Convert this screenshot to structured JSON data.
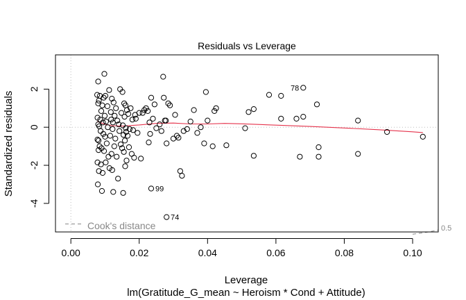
{
  "chart_data": {
    "type": "scatter",
    "title": "Residuals vs Leverage",
    "xlabel": "Leverage",
    "ylabel": "Standardized residuals",
    "subtitle": "lm(Gratitude_G_mean ~ Heroism * Cond + Attitude)",
    "xlim": [
      -0.0045,
      0.1075
    ],
    "ylim": [
      -5.5,
      3.8
    ],
    "x_ticks": [
      0.0,
      0.02,
      0.04,
      0.06,
      0.08,
      0.1
    ],
    "x_tick_labels": [
      "0.00",
      "0.02",
      "0.04",
      "0.06",
      "0.08",
      "0.10"
    ],
    "y_ticks": [
      -4,
      -2,
      0,
      2
    ],
    "y_tick_labels": [
      "-4",
      "-2",
      "0",
      "2"
    ],
    "legend": {
      "label": "Cook's distance",
      "position": "bottom-left"
    },
    "cooks_contour_label": "0.5",
    "cooks_contour": [
      [
        0.1,
        -5.62
      ],
      [
        0.104,
        -5.52
      ],
      [
        0.1075,
        -5.4
      ]
    ],
    "annotations": [
      {
        "label": "78",
        "x": 0.068,
        "y": 2.07
      },
      {
        "label": "99",
        "x": 0.0235,
        "y": -3.22
      },
      {
        "label": "74",
        "x": 0.028,
        "y": -4.72
      }
    ],
    "smooth_line": {
      "color": "#e5324b",
      "x": [
        0.0077,
        0.01,
        0.012,
        0.015,
        0.02,
        0.025,
        0.03,
        0.035,
        0.04,
        0.045,
        0.05,
        0.06,
        0.07,
        0.08,
        0.09,
        0.1,
        0.103
      ],
      "y": [
        0.3,
        0.16,
        0.08,
        0.06,
        0.12,
        0.2,
        0.22,
        0.17,
        0.17,
        0.2,
        0.18,
        0.11,
        0.04,
        -0.04,
        -0.13,
        -0.24,
        -0.28
      ]
    },
    "points": [
      [
        0.0077,
        1.7
      ],
      [
        0.0078,
        0.5
      ],
      [
        0.0078,
        -0.65
      ],
      [
        0.0078,
        -1.85
      ],
      [
        0.0079,
        -3.0
      ],
      [
        0.008,
        2.4
      ],
      [
        0.008,
        1.25
      ],
      [
        0.008,
        0.15
      ],
      [
        0.0081,
        -0.7
      ],
      [
        0.0081,
        -1.2
      ],
      [
        0.0082,
        -2.3
      ],
      [
        0.0082,
        1.4
      ],
      [
        0.0083,
        0.05
      ],
      [
        0.0084,
        -1.0
      ],
      [
        0.0085,
        1.65
      ],
      [
        0.0086,
        0.4
      ],
      [
        0.0087,
        -0.2
      ],
      [
        0.0088,
        -1.95
      ],
      [
        0.0089,
        0.85
      ],
      [
        0.009,
        -1.1
      ],
      [
        0.0091,
        -3.35
      ],
      [
        0.0092,
        1.15
      ],
      [
        0.0093,
        -2.4
      ],
      [
        0.0094,
        0.25
      ],
      [
        0.0095,
        -0.35
      ],
      [
        0.0096,
        1.55
      ],
      [
        0.0097,
        -1.25
      ],
      [
        0.0098,
        2.8
      ],
      [
        0.0099,
        0.6
      ],
      [
        0.01,
        -0.5
      ],
      [
        0.0101,
        1.65
      ],
      [
        0.0102,
        -1.85
      ],
      [
        0.0103,
        0.3
      ],
      [
        0.0105,
        -0.85
      ],
      [
        0.0107,
        1.1
      ],
      [
        0.0108,
        0.0
      ],
      [
        0.011,
        -1.55
      ],
      [
        0.0112,
        1.95
      ],
      [
        0.0113,
        -2.15
      ],
      [
        0.0115,
        -0.45
      ],
      [
        0.0117,
        0.8
      ],
      [
        0.0118,
        0.4
      ],
      [
        0.0119,
        -1.4
      ],
      [
        0.012,
        1.5
      ],
      [
        0.0121,
        -2.25
      ],
      [
        0.0122,
        -0.1
      ],
      [
        0.0123,
        0.25
      ],
      [
        0.0124,
        -3.4
      ],
      [
        0.0125,
        1.3
      ],
      [
        0.0127,
        -1.0
      ],
      [
        0.0128,
        0.6
      ],
      [
        0.013,
        -0.6
      ],
      [
        0.0132,
        1.0
      ],
      [
        0.0134,
        -1.55
      ],
      [
        0.0136,
        0.35
      ],
      [
        0.0138,
        -2.7
      ],
      [
        0.014,
        0.15
      ],
      [
        0.0142,
        -0.2
      ],
      [
        0.0144,
        2.0
      ],
      [
        0.0146,
        -0.9
      ],
      [
        0.0148,
        0.75
      ],
      [
        0.015,
        -1.1
      ],
      [
        0.0151,
        1.85
      ],
      [
        0.0152,
        0.1
      ],
      [
        0.0153,
        -3.45
      ],
      [
        0.0154,
        -0.4
      ],
      [
        0.0155,
        -1.3
      ],
      [
        0.0156,
        1.25
      ],
      [
        0.0157,
        0.55
      ],
      [
        0.0158,
        -0.7
      ],
      [
        0.0159,
        -2.05
      ],
      [
        0.016,
        1.15
      ],
      [
        0.0161,
        -0.05
      ],
      [
        0.0162,
        -0.25
      ],
      [
        0.0163,
        -1.75
      ],
      [
        0.0164,
        0.9
      ],
      [
        0.0166,
        -0.45
      ],
      [
        0.0168,
        0.7
      ],
      [
        0.017,
        -1.05
      ],
      [
        0.0172,
        -0.1
      ],
      [
        0.0175,
        1.0
      ],
      [
        0.0178,
        -1.4
      ],
      [
        0.018,
        0.4
      ],
      [
        0.0182,
        -0.15
      ],
      [
        0.0185,
        -1.6
      ],
      [
        0.0188,
        0.65
      ],
      [
        0.019,
        0.45
      ],
      [
        0.0195,
        -0.3
      ],
      [
        0.02,
        0.75
      ],
      [
        0.0205,
        -1.65
      ],
      [
        0.021,
        0.75
      ],
      [
        0.0215,
        0.9
      ],
      [
        0.022,
        1.0
      ],
      [
        0.0225,
        0.85
      ],
      [
        0.0228,
        -0.8
      ],
      [
        0.023,
        0.25
      ],
      [
        0.0232,
        -0.35
      ],
      [
        0.0235,
        1.55
      ],
      [
        0.024,
        0.45
      ],
      [
        0.0245,
        1.2
      ],
      [
        0.025,
        -0.05
      ],
      [
        0.026,
        0.15
      ],
      [
        0.0265,
        -0.2
      ],
      [
        0.027,
        2.65
      ],
      [
        0.0272,
        1.55
      ],
      [
        0.0275,
        0.35
      ],
      [
        0.0278,
        0.35
      ],
      [
        0.028,
        -0.85
      ],
      [
        0.0285,
        1.25
      ],
      [
        0.029,
        1.15
      ],
      [
        0.03,
        -0.6
      ],
      [
        0.0305,
        0.65
      ],
      [
        0.031,
        -0.45
      ],
      [
        0.0315,
        -0.55
      ],
      [
        0.032,
        -2.3
      ],
      [
        0.0325,
        -2.55
      ],
      [
        0.033,
        -0.2
      ],
      [
        0.034,
        -0.1
      ],
      [
        0.035,
        0.3
      ],
      [
        0.036,
        0.9
      ],
      [
        0.037,
        -0.3
      ],
      [
        0.038,
        0.0
      ],
      [
        0.039,
        -0.85
      ],
      [
        0.0395,
        1.85
      ],
      [
        0.04,
        0.35
      ],
      [
        0.0415,
        -1.0
      ],
      [
        0.042,
        0.85
      ],
      [
        0.0425,
        1.0
      ],
      [
        0.0455,
        -0.95
      ],
      [
        0.051,
        -0.05
      ],
      [
        0.052,
        0.8
      ],
      [
        0.0535,
        0.95
      ],
      [
        0.0535,
        -1.5
      ],
      [
        0.058,
        1.7
      ],
      [
        0.0615,
        1.65
      ],
      [
        0.0615,
        0.45
      ],
      [
        0.066,
        0.45
      ],
      [
        0.067,
        -1.55
      ],
      [
        0.068,
        0.55
      ],
      [
        0.072,
        1.2
      ],
      [
        0.0725,
        -1.05
      ],
      [
        0.0725,
        -1.55
      ],
      [
        0.084,
        0.35
      ],
      [
        0.084,
        -1.4
      ],
      [
        0.0925,
        -0.25
      ],
      [
        0.103,
        -0.5
      ]
    ]
  }
}
